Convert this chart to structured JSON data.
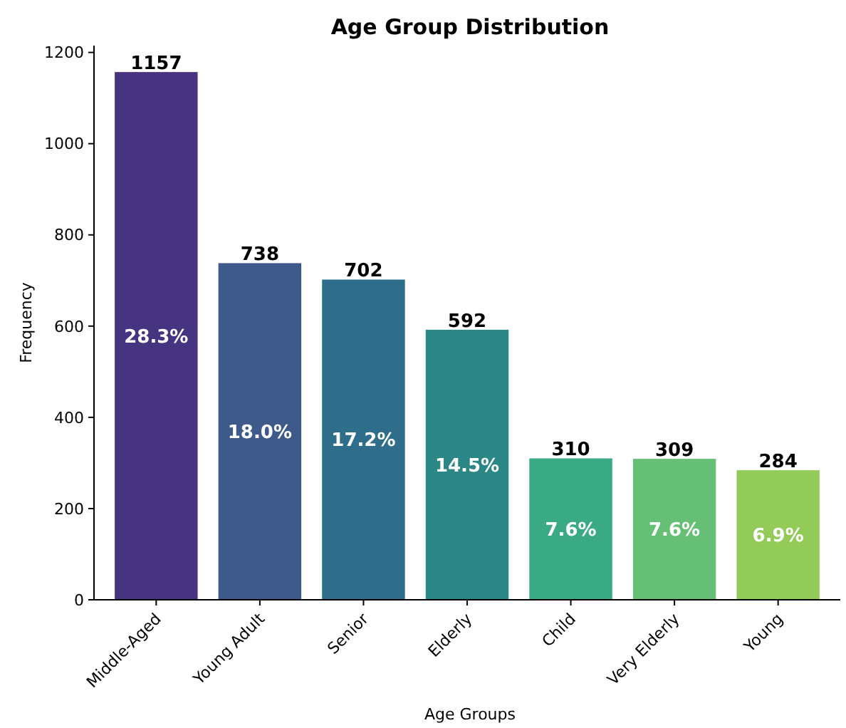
{
  "chart_data": {
    "type": "bar",
    "title": "Age Group Distribution",
    "xlabel": "Age Groups",
    "ylabel": "Frequency",
    "categories": [
      "Middle-Aged",
      "Young Adult",
      "Senior",
      "Elderly",
      "Child",
      "Very Elderly",
      "Young"
    ],
    "values": [
      1157,
      738,
      702,
      592,
      310,
      309,
      284
    ],
    "colors": [
      "#463480",
      "#3e5a8a",
      "#2f6e8a",
      "#2b8785",
      "#3aaa84",
      "#65bf74",
      "#93cb58"
    ],
    "ylim": [
      0,
      1215
    ],
    "yticks": [
      0,
      200,
      400,
      600,
      800,
      1000,
      1200
    ],
    "data_labels": true,
    "grid": false,
    "annotations": [
      "28.3%",
      "18.0%",
      "17.2%",
      "14.5%",
      "7.6%",
      "7.6%",
      "6.9%"
    ]
  }
}
